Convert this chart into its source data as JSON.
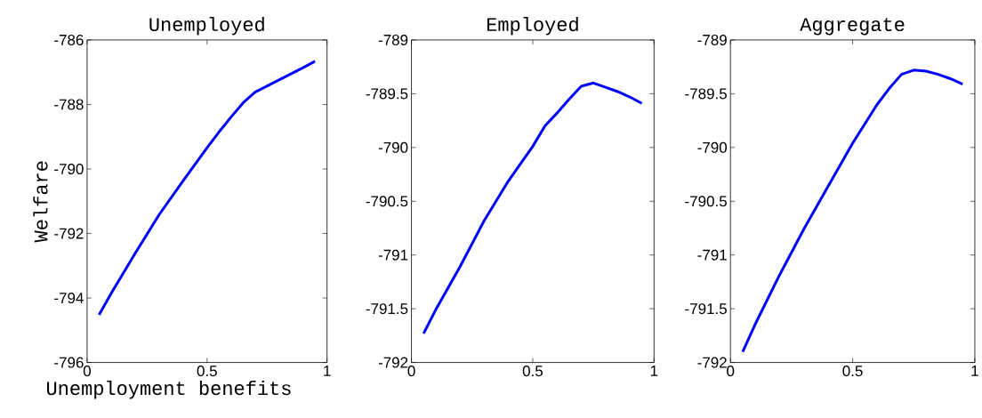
{
  "chart_data": [
    {
      "type": "line",
      "title": "Unemployed",
      "xlabel": "Unemployment benefits",
      "ylabel": "Welfare",
      "x": [
        0.05,
        0.1,
        0.2,
        0.3,
        0.4,
        0.5,
        0.55,
        0.6,
        0.65,
        0.7,
        0.8,
        0.9,
        0.95
      ],
      "series": [
        {
          "color": "#0000ff",
          "values": [
            -794.52,
            -793.86,
            -792.62,
            -791.42,
            -790.37,
            -789.34,
            -788.85,
            -788.39,
            -787.95,
            -787.62,
            -787.24,
            -786.86,
            -786.66
          ]
        }
      ],
      "xlim": [
        0,
        1
      ],
      "ylim": [
        -796,
        -786
      ],
      "xticks": [
        0,
        0.5,
        1
      ],
      "yticks": [
        -796,
        -794,
        -792,
        -790,
        -788,
        -786
      ]
    },
    {
      "type": "line",
      "title": "Employed",
      "x": [
        0.05,
        0.1,
        0.2,
        0.3,
        0.4,
        0.5,
        0.55,
        0.6,
        0.65,
        0.7,
        0.75,
        0.8,
        0.85,
        0.9,
        0.95
      ],
      "series": [
        {
          "color": "#0000ff",
          "values": [
            -791.73,
            -791.51,
            -791.11,
            -790.68,
            -790.31,
            -789.99,
            -789.8,
            -789.68,
            -789.55,
            -789.43,
            -789.4,
            -789.44,
            -789.48,
            -789.53,
            -789.59
          ]
        }
      ],
      "xlim": [
        0,
        1
      ],
      "ylim": [
        -792,
        -789
      ],
      "xticks": [
        0,
        0.5,
        1
      ],
      "yticks": [
        -792,
        -791.5,
        -791,
        -790.5,
        -790,
        -789.5,
        -789
      ]
    },
    {
      "type": "line",
      "title": "Aggregate",
      "x": [
        0.05,
        0.1,
        0.2,
        0.3,
        0.4,
        0.5,
        0.55,
        0.6,
        0.65,
        0.7,
        0.75,
        0.8,
        0.85,
        0.9,
        0.95
      ],
      "series": [
        {
          "color": "#0000ff",
          "values": [
            -791.9,
            -791.65,
            -791.19,
            -790.76,
            -790.36,
            -789.96,
            -789.78,
            -789.6,
            -789.45,
            -789.32,
            -789.28,
            -789.29,
            -789.32,
            -789.36,
            -789.41
          ]
        }
      ],
      "xlim": [
        0,
        1
      ],
      "ylim": [
        -792,
        -789
      ],
      "xticks": [
        0,
        0.5,
        1
      ],
      "yticks": [
        -792,
        -791.5,
        -791,
        -790.5,
        -790,
        -789.5,
        -789
      ]
    }
  ]
}
